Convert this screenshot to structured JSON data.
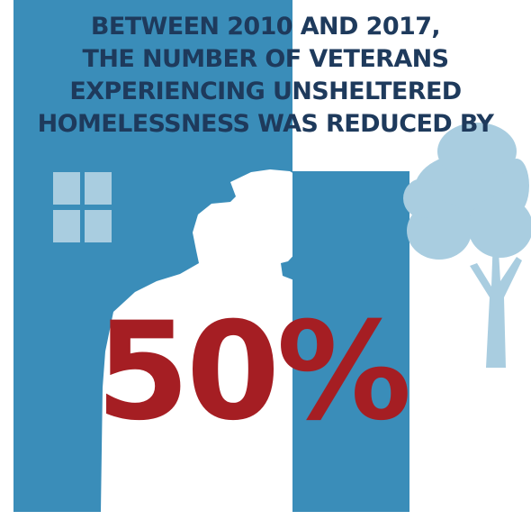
{
  "headline": {
    "lines": [
      "BETWEEN 2010 AND 2017,",
      "THE NUMBER OF VETERANS",
      "EXPERIENCING UNSHELTERED",
      "HOMELESSNESS WAS REDUCED BY"
    ]
  },
  "statistic": "50%",
  "colors": {
    "panel_blue": "#3A8DB9",
    "headline_navy": "#1E3A5C",
    "statistic_red": "#A51E23",
    "light_blue": "#A9CDE0",
    "background": "#FFFFFF"
  },
  "icons": {
    "window": "window-icon",
    "soldier": "saluting-soldier-silhouette",
    "tree": "tree-icon"
  }
}
